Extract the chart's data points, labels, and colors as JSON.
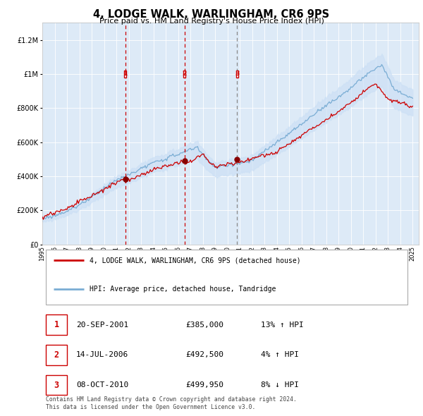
{
  "title": "4, LODGE WALK, WARLINGHAM, CR6 9PS",
  "subtitle": "Price paid vs. HM Land Registry's House Price Index (HPI)",
  "legend_line1": "4, LODGE WALK, WARLINGHAM, CR6 9PS (detached house)",
  "legend_line2": "HPI: Average price, detached house, Tandridge",
  "transaction_label1": "1",
  "transaction_date1": "20-SEP-2001",
  "transaction_price1": "£385,000",
  "transaction_hpi1": "13% ↑ HPI",
  "transaction_label2": "2",
  "transaction_date2": "14-JUL-2006",
  "transaction_price2": "£492,500",
  "transaction_hpi2": "4% ↑ HPI",
  "transaction_label3": "3",
  "transaction_date3": "08-OCT-2010",
  "transaction_price3": "£499,950",
  "transaction_hpi3": "8% ↓ HPI",
  "footer": "Contains HM Land Registry data © Crown copyright and database right 2024.\nThis data is licensed under the Open Government Licence v3.0.",
  "price_line_color": "#cc0000",
  "hpi_line_color": "#7aadd4",
  "hpi_fill_color": "#cce0f5",
  "plot_bg_color": "#ddeaf7",
  "ylim_max": 1300000,
  "yticks": [
    0,
    200000,
    400000,
    600000,
    800000,
    1000000,
    1200000
  ],
  "xlim_min": 1995,
  "xlim_max": 2025.5,
  "vline_x1": 2001.72,
  "vline_x2": 2006.53,
  "vline_x3": 2010.77,
  "marker_price1": 385000,
  "marker_price2": 492500,
  "marker_price3": 499950,
  "vline1_style": "dashed_red",
  "vline2_style": "dashed_red",
  "vline3_style": "dashed_gray"
}
